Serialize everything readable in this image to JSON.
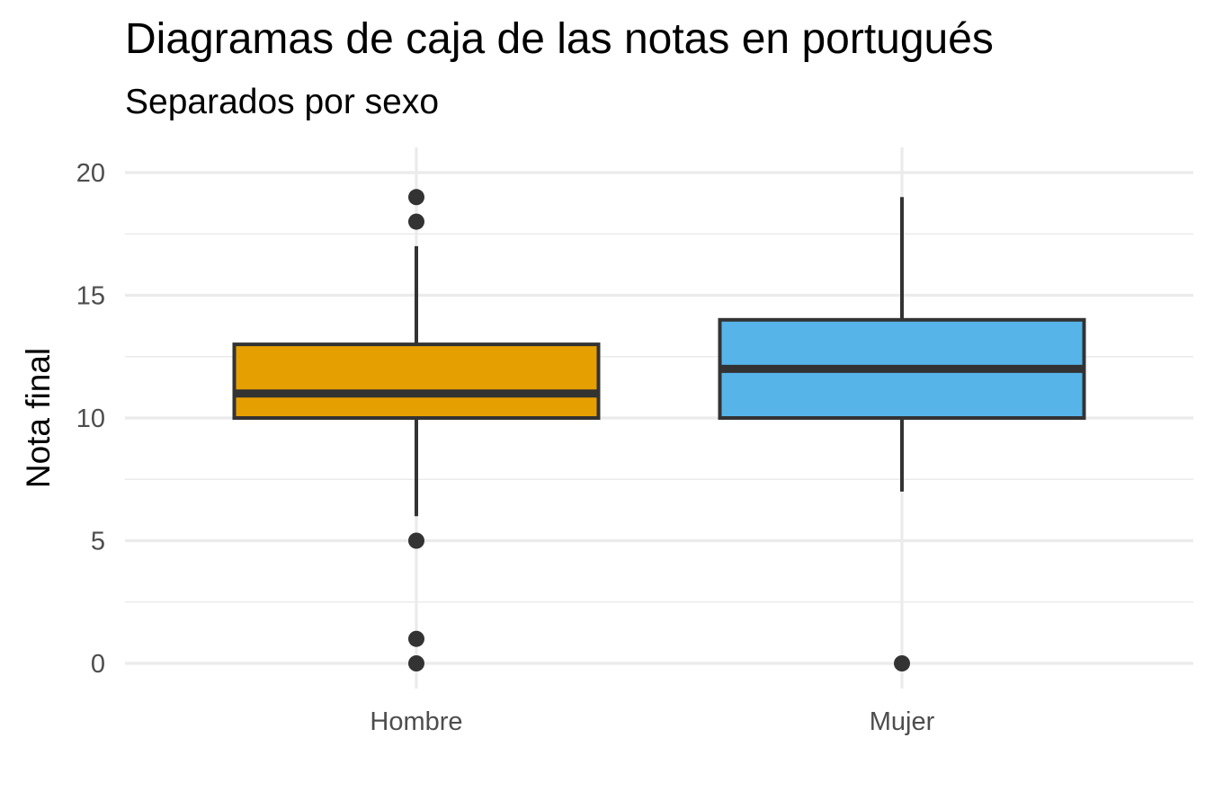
{
  "chart_data": {
    "type": "boxplot",
    "title": "Diagramas de caja de las notas en portugués",
    "subtitle": "Separados por sexo",
    "xlabel": "",
    "ylabel": "Nota final",
    "ylim": [
      -1,
      21
    ],
    "yticks": [
      0,
      5,
      10,
      15,
      20
    ],
    "grid": true,
    "legend": "none",
    "categories": [
      "Hombre",
      "Mujer"
    ],
    "series": [
      {
        "category": "Hombre",
        "color": "#E69F00",
        "whisker_low": 6,
        "q1": 10,
        "median": 11,
        "q3": 13,
        "whisker_high": 17,
        "outliers": [
          19,
          18,
          5,
          1,
          0
        ]
      },
      {
        "category": "Mujer",
        "color": "#56B4E9",
        "whisker_low": 7,
        "q1": 10,
        "median": 12,
        "q3": 14,
        "whisker_high": 19,
        "outliers": [
          0
        ]
      }
    ]
  }
}
